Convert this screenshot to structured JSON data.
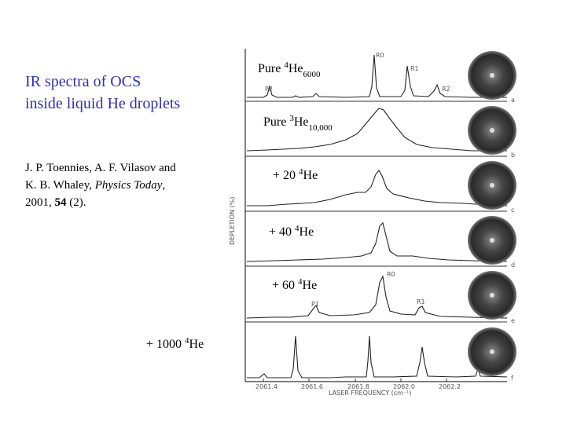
{
  "title": [
    "IR spectra of OCS",
    "inside liquid He droplets"
  ],
  "citation": {
    "line1": "J. P. Toennies, A. F. Vilasov and",
    "line2_prefix": "K. B. Whaley, ",
    "journal": "Physics Today",
    "line2_suffix": ",",
    "line3_prefix": "2001, ",
    "volume": "54",
    "line3_suffix": " (2)."
  },
  "panels": [
    {
      "prefix": "Pure ",
      "sup": "4",
      "main": "He",
      "sub": "6000",
      "letter": "a"
    },
    {
      "prefix": "Pure ",
      "sup": "3",
      "main": "He",
      "sub": "10,000",
      "letter": "b"
    },
    {
      "prefix": "+ 20 ",
      "sup": "4",
      "main": "He",
      "letter": "c"
    },
    {
      "prefix": "+ 40 ",
      "sup": "4",
      "main": "He",
      "letter": "d"
    },
    {
      "prefix": "+ 60 ",
      "sup": "4",
      "main": "He",
      "letter": "e"
    },
    {
      "prefix": "+ 1000 ",
      "sup": "4",
      "main": "He",
      "letter": "f"
    }
  ],
  "figure": {
    "y_axis_label": "DEPLETION (%)",
    "x_axis_label": "LASER FREQUENCY (cm⁻¹)",
    "x_ticks": [
      "2061.4",
      "2061.6",
      "2061.8",
      "2062.0",
      "2062.2"
    ],
    "peaks_a": [
      "P2",
      "R0",
      "R1",
      "R2"
    ],
    "peaks_e": [
      "P1",
      "R0",
      "R1"
    ]
  }
}
